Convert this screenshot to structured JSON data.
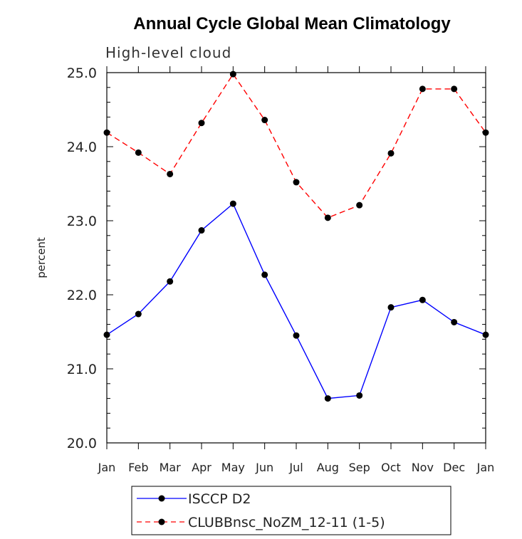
{
  "chart_data": {
    "type": "line",
    "title": "Annual Cycle Global Mean Climatology",
    "subtitle": "High-level cloud",
    "ylabel": "percent",
    "xlabel": "",
    "categories": [
      "Jan",
      "Feb",
      "Mar",
      "Apr",
      "May",
      "Jun",
      "Jul",
      "Aug",
      "Sep",
      "Oct",
      "Nov",
      "Dec",
      "Jan"
    ],
    "ylim": [
      20.0,
      25.0
    ],
    "yticks": [
      "20.0",
      "21.0",
      "22.0",
      "23.0",
      "24.0",
      "25.0"
    ],
    "grid": false,
    "legend_position": "bottom",
    "series": [
      {
        "name": "ISCCP D2",
        "color": "#0000ff",
        "dash": "solid",
        "values": [
          21.46,
          21.74,
          22.18,
          22.87,
          23.23,
          22.27,
          21.45,
          20.6,
          20.64,
          21.83,
          21.93,
          21.63,
          21.46
        ]
      },
      {
        "name": "CLUBBnsc_NoZM_12-11 (1-5)",
        "color": "#ff0000",
        "dash": "dashed",
        "values": [
          24.19,
          23.92,
          23.63,
          24.32,
          24.98,
          24.36,
          23.52,
          23.04,
          23.21,
          23.91,
          24.78,
          24.78,
          24.19
        ]
      }
    ]
  }
}
